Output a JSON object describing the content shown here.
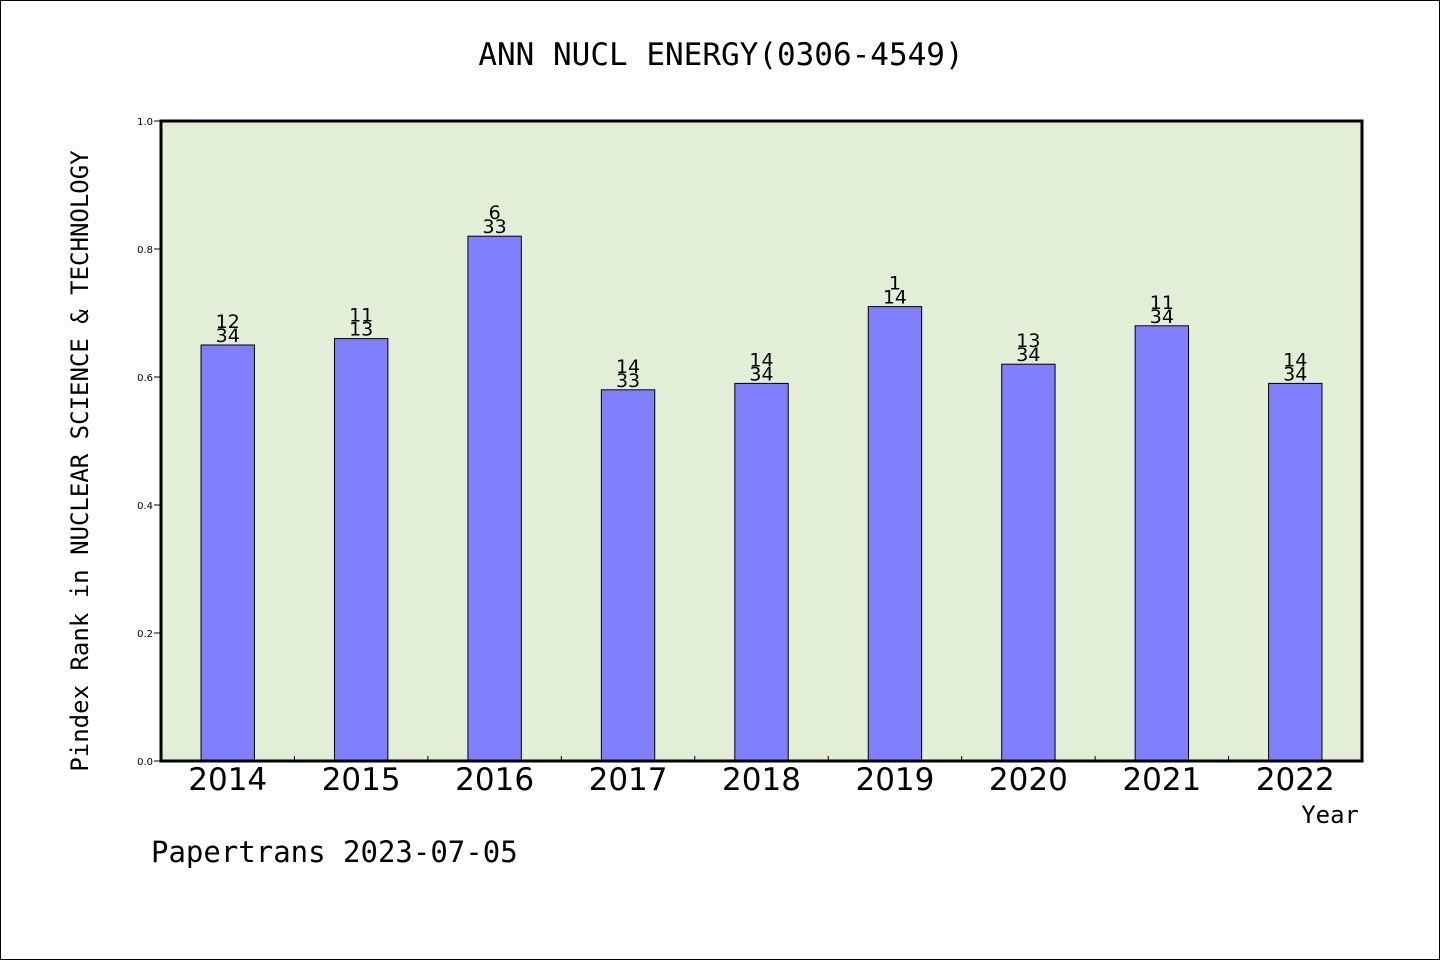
{
  "footer": "Papertrans 2023-07-05",
  "colors": {
    "plot_bg": "#e2efd6",
    "bar": "#8080ff",
    "bar_edge": "#000000",
    "axis": "#000000"
  },
  "chart_data": {
    "type": "bar",
    "title": "ANN NUCL ENERGY(0306-4549)",
    "xlabel": "Year",
    "ylabel": "Pindex Rank in NUCLEAR SCIENCE & TECHNOLOGY",
    "ylim": [
      0.0,
      1.0
    ],
    "yticks": [
      "0.0",
      "0.2",
      "0.4",
      "0.6",
      "0.8",
      "1.0"
    ],
    "grid": false,
    "categories": [
      "2014",
      "2015",
      "2016",
      "2017",
      "2018",
      "2019",
      "2020",
      "2021",
      "2022"
    ],
    "values": [
      0.65,
      0.66,
      0.82,
      0.58,
      0.59,
      0.71,
      0.62,
      0.68,
      0.59
    ],
    "labels_top": [
      "12",
      "11",
      "6",
      "14",
      "14",
      "1",
      "13",
      "11",
      "14"
    ],
    "labels_bottom": [
      "34",
      "13",
      "33",
      "33",
      "34",
      "14",
      "34",
      "34",
      "34"
    ]
  }
}
